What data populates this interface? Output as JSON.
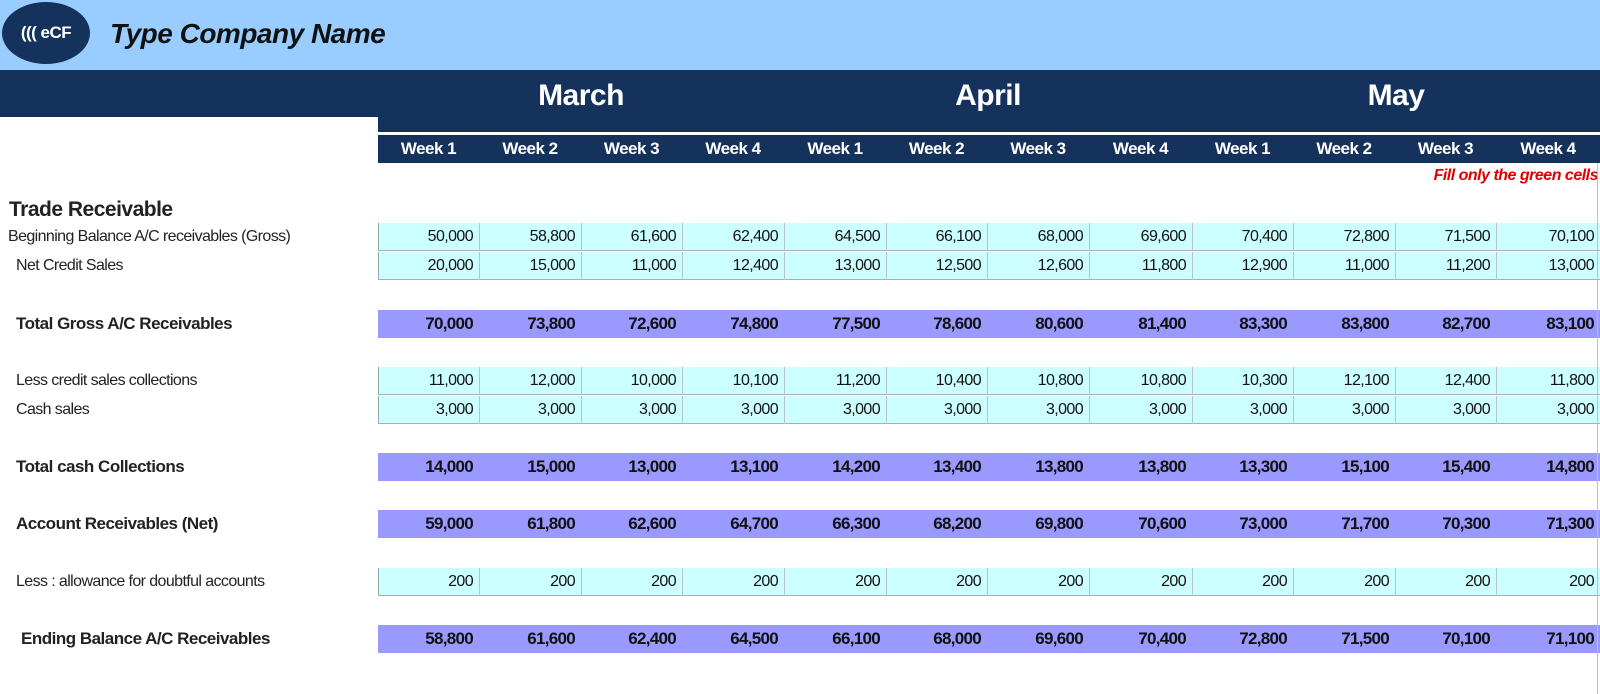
{
  "header": {
    "logo_text": "((( eCF",
    "company_name": "Type Company Name"
  },
  "months": [
    "March",
    "April",
    "May"
  ],
  "weeks": [
    "Week 1",
    "Week 2",
    "Week 3",
    "Week 4",
    "Week 1",
    "Week 2",
    "Week 3",
    "Week 4",
    "Week 1",
    "Week 2",
    "Week 3",
    "Week 4"
  ],
  "note": "Fill only the green cells",
  "section_title": "Trade Receivable",
  "rows": [
    {
      "label": "Beginning Balance A/C receivables (Gross)",
      "style": "input",
      "values": [
        "50,000",
        "58,800",
        "61,600",
        "62,400",
        "64,500",
        "66,100",
        "68,000",
        "69,600",
        "70,400",
        "72,800",
        "71,500",
        "70,100"
      ]
    },
    {
      "label": "Net Credit Sales",
      "style": "input",
      "values": [
        "20,000",
        "15,000",
        "11,000",
        "12,400",
        "13,000",
        "12,500",
        "12,600",
        "11,800",
        "12,900",
        "11,000",
        "11,200",
        "13,000"
      ]
    },
    {
      "label": "Total Gross A/C Receivables",
      "style": "total",
      "values": [
        "70,000",
        "73,800",
        "72,600",
        "74,800",
        "77,500",
        "78,600",
        "80,600",
        "81,400",
        "83,300",
        "83,800",
        "82,700",
        "83,100"
      ]
    },
    {
      "label": "Less credit sales collections",
      "style": "input",
      "values": [
        "11,000",
        "12,000",
        "10,000",
        "10,100",
        "11,200",
        "10,400",
        "10,800",
        "10,800",
        "10,300",
        "12,100",
        "12,400",
        "11,800"
      ]
    },
    {
      "label": "Cash sales",
      "style": "input",
      "values": [
        "3,000",
        "3,000",
        "3,000",
        "3,000",
        "3,000",
        "3,000",
        "3,000",
        "3,000",
        "3,000",
        "3,000",
        "3,000",
        "3,000"
      ]
    },
    {
      "label": "Total cash Collections",
      "style": "total",
      "values": [
        "14,000",
        "15,000",
        "13,000",
        "13,100",
        "14,200",
        "13,400",
        "13,800",
        "13,800",
        "13,300",
        "15,100",
        "15,400",
        "14,800"
      ]
    },
    {
      "label": "Account Receivables (Net)",
      "style": "total",
      "values": [
        "59,000",
        "61,800",
        "62,600",
        "64,700",
        "66,300",
        "68,200",
        "69,800",
        "70,600",
        "73,000",
        "71,700",
        "70,300",
        "71,300"
      ]
    },
    {
      "label": "Less : allowance for doubtful accounts",
      "style": "input",
      "values": [
        "200",
        "200",
        "200",
        "200",
        "200",
        "200",
        "200",
        "200",
        "200",
        "200",
        "200",
        "200"
      ]
    },
    {
      "label": "Ending Balance A/C Receivables",
      "style": "total",
      "values": [
        "58,800",
        "61,600",
        "62,400",
        "64,500",
        "66,100",
        "68,000",
        "69,600",
        "70,400",
        "72,800",
        "71,500",
        "70,100",
        "71,100"
      ]
    }
  ]
}
